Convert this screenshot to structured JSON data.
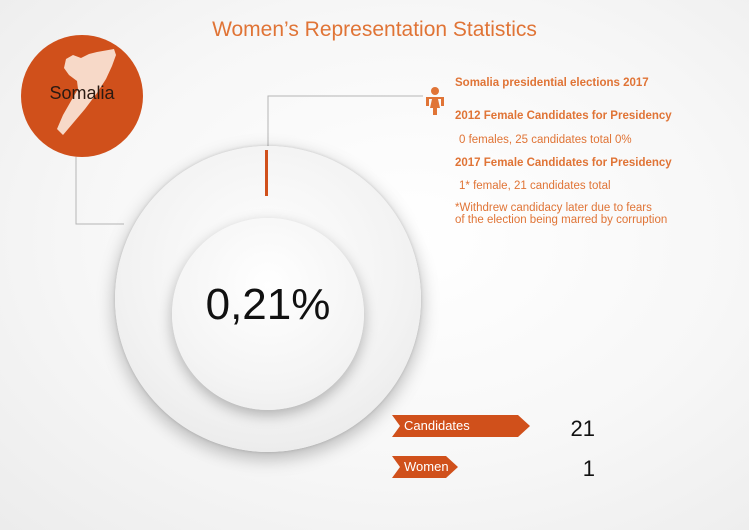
{
  "title": "Women’s Representation Statistics",
  "country": {
    "name": "Somalia",
    "color": "#d0501b",
    "map_color": "#f7d9c8"
  },
  "chart_data": {
    "type": "pie",
    "title": "",
    "center_label": "0,21%",
    "slices": [
      {
        "label": "Women",
        "value": 0.21,
        "color": "#d0501b"
      },
      {
        "label": "",
        "value": 99.79,
        "color": "#eeeeee"
      }
    ]
  },
  "info": {
    "heading": "Somalia presidential elections 2017",
    "y2012_heading": "2012 Female Candidates for Presidency",
    "y2012_detail": "0 females, 25 candidates total  0%",
    "y2017_heading": "2017 Female Candidates for Presidency",
    "y2017_detail": "1* female, 21 candidates total",
    "note_line1": "*Withdrew candidacy later due to fears",
    "note_line2": "of the election being marred by corruption"
  },
  "stats": [
    {
      "label": "Candidates",
      "value": "21"
    },
    {
      "label": "Women",
      "value": "1"
    }
  ],
  "colors": {
    "accent": "#e07436",
    "dark_accent": "#d0501b",
    "connector": "#b5b5b5"
  },
  "icons": {
    "woman": "woman-icon",
    "map": "somalia-map-icon"
  }
}
